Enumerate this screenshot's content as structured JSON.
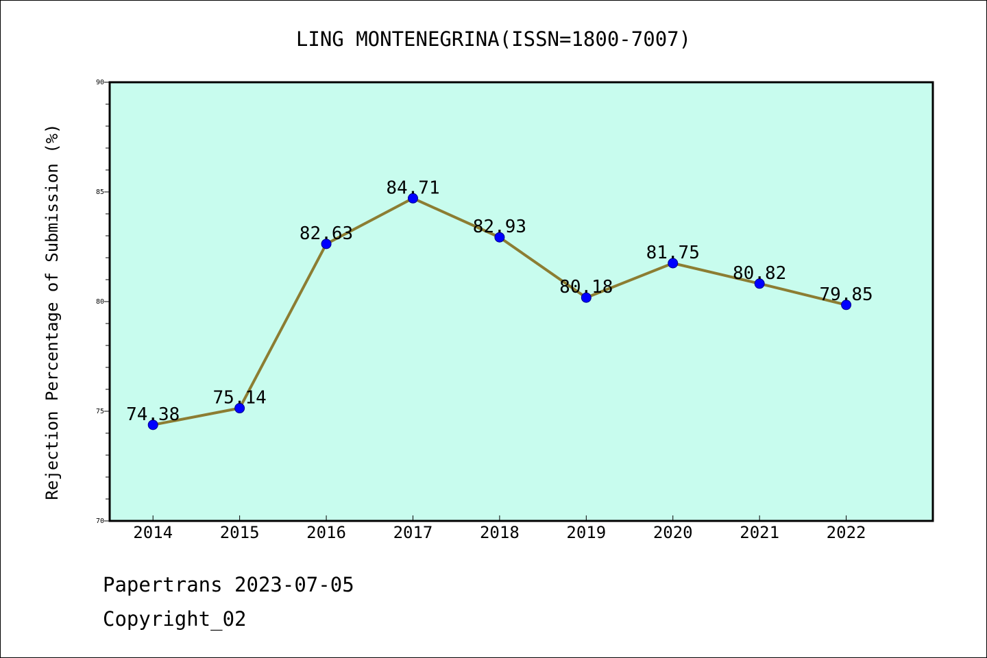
{
  "chart_data": {
    "type": "line",
    "title": "LING MONTENEGRINA(ISSN=1800-7007)",
    "xlabel": "",
    "ylabel": "Rejection Percentage of Submission (%)",
    "categories": [
      "2014",
      "2015",
      "2016",
      "2017",
      "2018",
      "2019",
      "2020",
      "2021",
      "2022"
    ],
    "series": [
      {
        "values": [
          74.38,
          75.14,
          82.63,
          84.71,
          82.93,
          80.18,
          81.75,
          80.82,
          79.85
        ]
      }
    ],
    "data_labels": [
      "74.38",
      "75.14",
      "82.63",
      "84.71",
      "82.93",
      "80.18",
      "81.75",
      "80.82",
      "79.85"
    ],
    "ylim": [
      70,
      90
    ],
    "yticks": [
      70,
      75,
      80,
      85,
      90
    ],
    "ytick_labels": [
      "70",
      "75",
      "80",
      "85",
      "90"
    ],
    "grid": false,
    "legend": "none",
    "colors": {
      "plot_background": "#c8fcee",
      "line": "#8c7d32",
      "marker": "#0000ff",
      "axes": "#000000"
    }
  },
  "footer": {
    "line1": "Papertrans 2023-07-05",
    "line2": "Copyright_02"
  }
}
